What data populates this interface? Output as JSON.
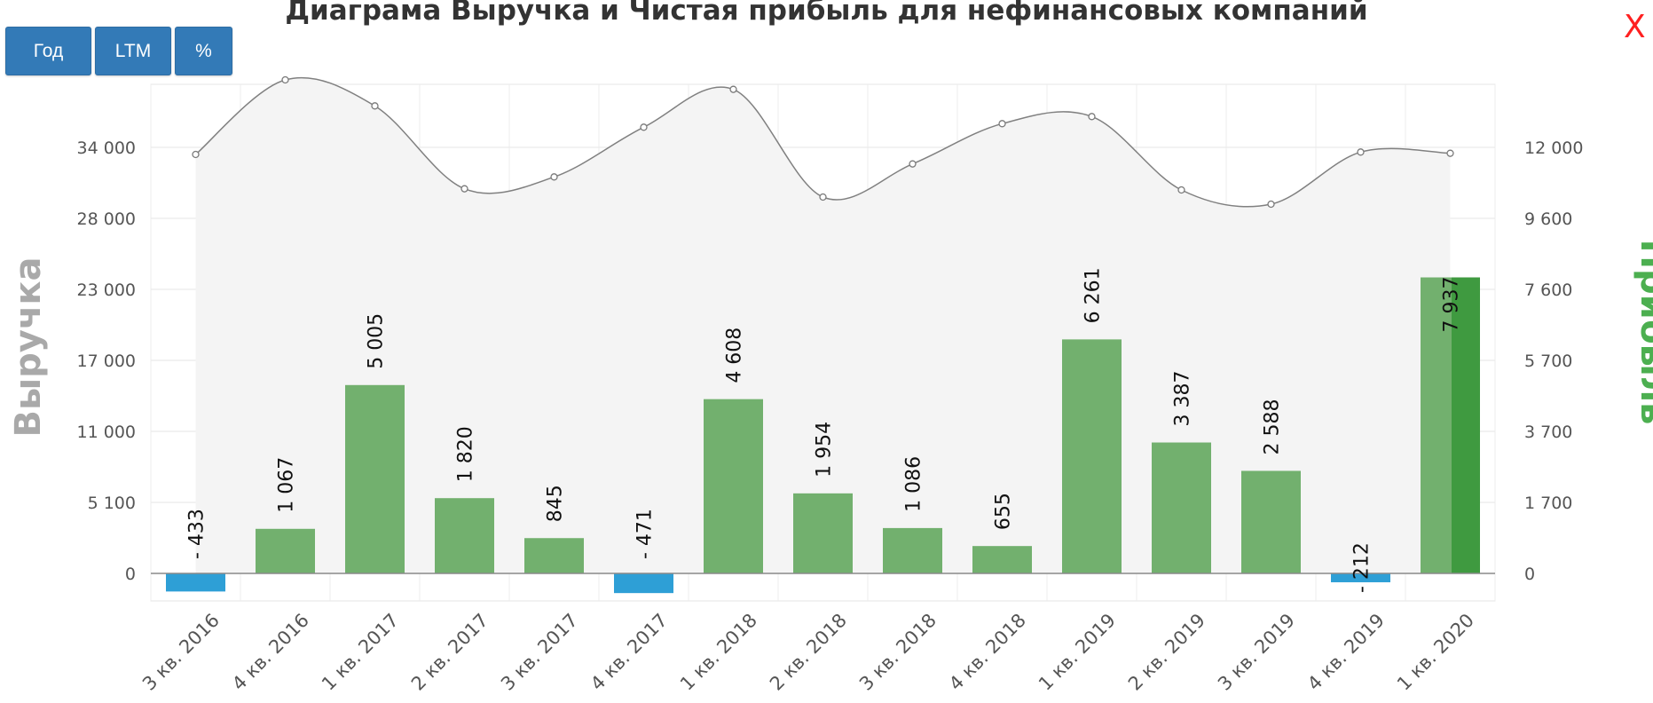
{
  "title": "Диаграма Выручка и Чистая прибыль для нефинансовых компаний",
  "buttons": [
    {
      "label": "Год"
    },
    {
      "label": "LTM"
    },
    {
      "label": "%"
    }
  ],
  "close_label": "X",
  "colors": {
    "positive_bar": "#72b06e",
    "negative_bar": "#2e9fd6",
    "highlight_bar": "#3f9a40",
    "line": "#808080",
    "area": "#f4f4f4",
    "left_axis_title": "#a9a9a9",
    "right_axis_title": "#4caf50"
  },
  "chart_data": {
    "type": "bar",
    "title": "Диаграма Выручка и Чистая прибыль для нефинансовых компаний",
    "categories": [
      "3 кв. 2016",
      "4 кв. 2016",
      "1 кв. 2017",
      "2 кв. 2017",
      "3 кв. 2017",
      "4 кв. 2017",
      "1 кв. 2018",
      "2 кв. 2018",
      "3 кв. 2018",
      "4 кв. 2018",
      "1 кв. 2019",
      "2 кв. 2019",
      "3 кв. 2019",
      "4 кв. 2019",
      "1 кв. 2020"
    ],
    "y_left": {
      "label": "Выручка",
      "ticks": [
        0,
        5100,
        11000,
        17000,
        23000,
        28000,
        34000
      ],
      "tick_labels": [
        "0",
        "5 100",
        "11 000",
        "17 000",
        "23 000",
        "28 000",
        "34 000"
      ]
    },
    "y_right": {
      "label": "Прибыль",
      "ticks": [
        0,
        1700,
        3700,
        5700,
        7600,
        9600,
        12000
      ],
      "tick_labels": [
        "0",
        "1 700",
        "3 700",
        "5 700",
        "7 600",
        "9 600",
        "12 000"
      ]
    },
    "series": [
      {
        "name": "Выручка",
        "type": "area-line",
        "axis": "left",
        "values": [
          33400,
          39700,
          37500,
          30500,
          31500,
          35700,
          38900,
          29800,
          32600,
          36000,
          36600,
          30400,
          29200,
          33600,
          33500
        ]
      },
      {
        "name": "Прибыль",
        "type": "bar",
        "axis": "right",
        "values": [
          -433,
          1067,
          5005,
          1820,
          845,
          -471,
          4608,
          1954,
          1086,
          655,
          6261,
          3387,
          2588,
          -212,
          7937
        ],
        "labels": [
          "- 433",
          "1 067",
          "5 005",
          "1 820",
          "845",
          "- 471",
          "4 608",
          "1 954",
          "1 086",
          "655",
          "6 261",
          "3 387",
          "2 588",
          "- 212",
          "7 937"
        ]
      }
    ],
    "grid": true
  }
}
